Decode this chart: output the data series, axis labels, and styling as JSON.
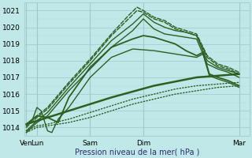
{
  "xlabel": "Pression niveau de la mer( hPa )",
  "bg_color": "#c0e8e8",
  "grid_color": "#a0c8c8",
  "grid_minor_color": "#b8d8d8",
  "line_color": "#2d6020",
  "ylim": [
    1013.5,
    1021.5
  ],
  "yticks": [
    1014,
    1015,
    1016,
    1017,
    1018,
    1019,
    1020,
    1021
  ],
  "xtick_labels": [
    "Ven",
    "Lun",
    "Sam",
    "Dim",
    "Mar"
  ],
  "xtick_positions": [
    0,
    0.5,
    3.0,
    5.5,
    10.0
  ],
  "xlim": [
    -0.1,
    10.5
  ],
  "vlines": [
    0,
    0.5,
    3.0,
    5.5,
    10.0
  ],
  "lines": [
    {
      "x": [
        0.0,
        0.5,
        1.0,
        2.0,
        3.0,
        4.0,
        5.0,
        5.5,
        6.0,
        6.5,
        7.0,
        7.5,
        8.0,
        8.5,
        9.0,
        9.5,
        10.0
      ],
      "y": [
        1013.7,
        1014.3,
        1014.7,
        1016.2,
        1017.5,
        1018.8,
        1019.8,
        1020.5,
        1019.9,
        1019.6,
        1019.5,
        1019.4,
        1019.3,
        1017.8,
        1017.5,
        1017.3,
        1017.0
      ],
      "style": "-",
      "lw": 1.0
    },
    {
      "x": [
        0.0,
        0.5,
        1.0,
        2.0,
        3.0,
        4.0,
        5.0,
        5.5,
        6.0,
        6.5,
        7.0,
        7.5,
        8.0,
        8.5,
        9.0,
        9.5,
        10.0
      ],
      "y": [
        1013.8,
        1014.4,
        1014.9,
        1016.4,
        1017.8,
        1019.2,
        1020.2,
        1020.8,
        1020.3,
        1020.0,
        1019.8,
        1019.7,
        1019.5,
        1018.0,
        1017.6,
        1017.4,
        1017.2
      ],
      "style": "-",
      "lw": 1.0
    },
    {
      "x": [
        0.0,
        0.5,
        1.0,
        2.0,
        3.0,
        4.0,
        4.8,
        5.2,
        5.5,
        6.0,
        6.5,
        7.0,
        7.5,
        8.0,
        8.5,
        9.0,
        9.5,
        10.0
      ],
      "y": [
        1014.0,
        1014.6,
        1015.1,
        1016.6,
        1018.0,
        1019.5,
        1020.5,
        1021.0,
        1020.9,
        1020.5,
        1020.3,
        1019.9,
        1019.7,
        1019.5,
        1018.2,
        1017.7,
        1017.5,
        1017.2
      ],
      "style": "--",
      "lw": 1.0
    },
    {
      "x": [
        0.0,
        0.5,
        1.0,
        2.0,
        3.0,
        4.0,
        4.8,
        5.2,
        5.5,
        6.0,
        6.5,
        7.0,
        7.5,
        8.0,
        8.5,
        9.0,
        9.5,
        10.0
      ],
      "y": [
        1014.1,
        1014.7,
        1015.2,
        1016.7,
        1018.1,
        1019.6,
        1020.7,
        1021.2,
        1021.0,
        1020.6,
        1020.4,
        1020.0,
        1019.8,
        1019.6,
        1018.3,
        1017.8,
        1017.6,
        1017.3
      ],
      "style": "--",
      "lw": 1.0
    },
    {
      "x": [
        0.0,
        0.5,
        1.0,
        1.5,
        2.0,
        3.0,
        4.0,
        5.0,
        5.5,
        6.0,
        6.5,
        7.0,
        7.5,
        8.0,
        8.3,
        8.6,
        9.0,
        9.5,
        10.0
      ],
      "y": [
        1014.2,
        1014.7,
        1014.6,
        1014.3,
        1015.8,
        1017.6,
        1018.8,
        1019.3,
        1019.5,
        1019.4,
        1019.2,
        1019.0,
        1018.6,
        1018.3,
        1018.5,
        1017.2,
        1017.0,
        1016.8,
        1016.5
      ],
      "style": "-",
      "lw": 1.3
    },
    {
      "x": [
        0.0,
        0.3,
        0.5,
        0.7,
        1.0,
        1.2,
        1.5,
        2.0,
        3.0,
        4.0,
        5.0,
        6.0,
        7.0,
        8.0,
        8.3,
        8.6,
        9.0,
        9.5,
        10.0
      ],
      "y": [
        1014.1,
        1014.5,
        1015.2,
        1015.0,
        1013.8,
        1013.7,
        1014.5,
        1015.2,
        1017.0,
        1018.2,
        1018.7,
        1018.6,
        1018.4,
        1018.2,
        1018.4,
        1017.1,
        1016.9,
        1016.7,
        1016.4
      ],
      "style": "-",
      "lw": 1.0
    },
    {
      "x": [
        0.0,
        0.5,
        1.0,
        2.0,
        3.0,
        4.0,
        5.0,
        6.0,
        7.0,
        8.0,
        9.0,
        10.0
      ],
      "y": [
        1013.7,
        1014.0,
        1014.1,
        1014.3,
        1014.6,
        1015.0,
        1015.4,
        1015.7,
        1016.0,
        1016.2,
        1016.4,
        1016.5
      ],
      "style": ":",
      "lw": 1.0
    },
    {
      "x": [
        0.0,
        0.5,
        1.0,
        2.0,
        3.0,
        4.0,
        5.0,
        6.0,
        7.0,
        8.0,
        9.0,
        10.0
      ],
      "y": [
        1013.8,
        1014.1,
        1014.2,
        1014.5,
        1014.9,
        1015.3,
        1015.7,
        1016.0,
        1016.3,
        1016.5,
        1016.6,
        1016.7
      ],
      "style": ":",
      "lw": 1.0
    },
    {
      "x": [
        0.0,
        2.0,
        4.0,
        6.0,
        8.0,
        10.0
      ],
      "y": [
        1014.2,
        1015.0,
        1015.8,
        1016.5,
        1017.0,
        1017.2
      ],
      "style": "-",
      "lw": 1.8
    }
  ]
}
